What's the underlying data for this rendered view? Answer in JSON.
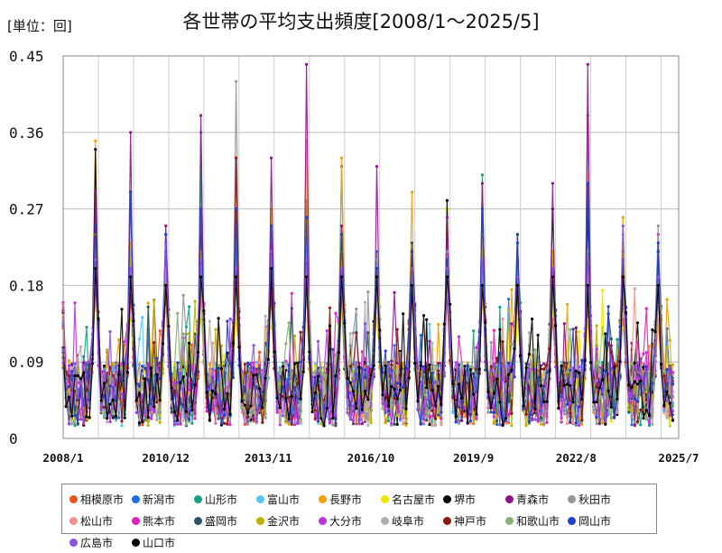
{
  "header": {
    "unit": "[単位：回]",
    "title": "各世帯の平均支出頻度[2008/1～2025/5]"
  },
  "chart_data": {
    "type": "line",
    "title": "各世帯の平均支出頻度[2008/1～2025/5]",
    "xlabel": "",
    "ylabel": "",
    "ylim": [
      0,
      0.45
    ],
    "yticks": [
      "0",
      "0.09",
      "0.18",
      "0.27",
      "0.36",
      "0.45"
    ],
    "xticks": [
      "2008/1",
      "2010/12",
      "2013/11",
      "2016/10",
      "2019/9",
      "2022/8",
      "2025/7"
    ],
    "grid": true,
    "legend_position": "bottom",
    "x_range": [
      "2008/1",
      "2025/5"
    ],
    "annual_peak_months": [
      "2008/12",
      "2009/12",
      "2010/12",
      "2011/12",
      "2012/12",
      "2013/12",
      "2014/12",
      "2015/12",
      "2016/12",
      "2017/12",
      "2018/12",
      "2019/12",
      "2020/12",
      "2021/12",
      "2022/12",
      "2023/12",
      "2024/12"
    ],
    "series": [
      {
        "name": "相模原市",
        "color": "#e8521c",
        "peaks": [
          0.2,
          0.17,
          0.19,
          0.16,
          0.14,
          0.16,
          0.18,
          0.17,
          0.18,
          0.17,
          0.18,
          0.17,
          0.16,
          0.14,
          0.15,
          0.14,
          0.14
        ]
      },
      {
        "name": "新潟市",
        "color": "#1f6fe0",
        "peaks": [
          0.26,
          0.29,
          0.23,
          0.36,
          0.24,
          0.23,
          0.25,
          0.21,
          0.22,
          0.22,
          0.19,
          0.24,
          0.24,
          0.2,
          0.19,
          0.18,
          0.18
        ]
      },
      {
        "name": "山形市",
        "color": "#14a085",
        "peaks": [
          0.23,
          0.22,
          0.22,
          0.32,
          0.24,
          0.2,
          0.28,
          0.32,
          0.2,
          0.22,
          0.24,
          0.31,
          0.21,
          0.21,
          0.38,
          0.2,
          0.22
        ]
      },
      {
        "name": "富山市",
        "color": "#55c5f0",
        "peaks": [
          0.22,
          0.21,
          0.2,
          0.22,
          0.27,
          0.2,
          0.22,
          0.21,
          0.18,
          0.2,
          0.24,
          0.26,
          0.19,
          0.19,
          0.28,
          0.2,
          0.22
        ]
      },
      {
        "name": "長野市",
        "color": "#f0a000",
        "peaks": [
          0.35,
          0.23,
          0.24,
          0.24,
          0.26,
          0.27,
          0.35,
          0.33,
          0.2,
          0.29,
          0.27,
          0.23,
          0.17,
          0.22,
          0.31,
          0.26,
          0.18
        ]
      },
      {
        "name": "名古屋市",
        "color": "#f2e600",
        "peaks": [
          0.16,
          0.14,
          0.15,
          0.14,
          0.15,
          0.13,
          0.14,
          0.16,
          0.14,
          0.17,
          0.27,
          0.16,
          0.14,
          0.15,
          0.14,
          0.13,
          0.14
        ]
      },
      {
        "name": "堺市",
        "color": "#000000",
        "peaks": [
          0.34,
          0.18,
          0.17,
          0.18,
          0.2,
          0.17,
          0.19,
          0.18,
          0.19,
          0.2,
          0.28,
          0.19,
          0.18,
          0.27,
          0.27,
          0.18,
          0.17
        ]
      },
      {
        "name": "青森市",
        "color": "#8b158a",
        "peaks": [
          0.29,
          0.36,
          0.25,
          0.38,
          0.33,
          0.33,
          0.44,
          0.25,
          0.32,
          0.22,
          0.26,
          0.3,
          0.24,
          0.3,
          0.44,
          0.22,
          0.24
        ]
      },
      {
        "name": "秋田市",
        "color": "#959595",
        "peaks": [
          0.2,
          0.22,
          0.2,
          0.24,
          0.42,
          0.23,
          0.26,
          0.22,
          0.21,
          0.22,
          0.22,
          0.24,
          0.2,
          0.2,
          0.22,
          0.24,
          0.25
        ]
      },
      {
        "name": "松山市",
        "color": "#f09090",
        "peaks": [
          0.17,
          0.16,
          0.18,
          0.17,
          0.18,
          0.2,
          0.17,
          0.18,
          0.17,
          0.18,
          0.16,
          0.17,
          0.16,
          0.17,
          0.16,
          0.17,
          0.16
        ]
      },
      {
        "name": "熊本市",
        "color": "#e020b8",
        "peaks": [
          0.22,
          0.2,
          0.19,
          0.21,
          0.22,
          0.23,
          0.24,
          0.21,
          0.18,
          0.2,
          0.19,
          0.22,
          0.18,
          0.19,
          0.21,
          0.19,
          0.2
        ]
      },
      {
        "name": "盛岡市",
        "color": "#2a5560",
        "peaks": [
          0.18,
          0.21,
          0.19,
          0.24,
          0.18,
          0.21,
          0.22,
          0.19,
          0.2,
          0.23,
          0.21,
          0.22,
          0.24,
          0.18,
          0.3,
          0.2,
          0.22
        ]
      },
      {
        "name": "金沢市",
        "color": "#c0b000",
        "peaks": [
          0.24,
          0.21,
          0.2,
          0.22,
          0.26,
          0.22,
          0.24,
          0.22,
          0.19,
          0.2,
          0.2,
          0.22,
          0.18,
          0.2,
          0.22,
          0.23,
          0.19
        ]
      },
      {
        "name": "大分市",
        "color": "#c030e0",
        "peaks": [
          0.21,
          0.19,
          0.18,
          0.2,
          0.2,
          0.22,
          0.21,
          0.2,
          0.18,
          0.19,
          0.2,
          0.19,
          0.18,
          0.19,
          0.2,
          0.18,
          0.19
        ]
      },
      {
        "name": "岐阜市",
        "color": "#b0b0b0",
        "peaks": [
          0.19,
          0.18,
          0.17,
          0.19,
          0.18,
          0.19,
          0.2,
          0.18,
          0.17,
          0.18,
          0.17,
          0.18,
          0.17,
          0.17,
          0.18,
          0.17,
          0.17
        ]
      },
      {
        "name": "神戸市",
        "color": "#8b1a10",
        "peaks": [
          0.18,
          0.17,
          0.18,
          0.19,
          0.33,
          0.18,
          0.19,
          0.18,
          0.19,
          0.18,
          0.17,
          0.18,
          0.17,
          0.18,
          0.17,
          0.17,
          0.18
        ]
      },
      {
        "name": "和歌山市",
        "color": "#88b070",
        "peaks": [
          0.19,
          0.18,
          0.19,
          0.2,
          0.19,
          0.21,
          0.2,
          0.19,
          0.18,
          0.19,
          0.18,
          0.19,
          0.18,
          0.18,
          0.19,
          0.18,
          0.19
        ]
      },
      {
        "name": "岡山市",
        "color": "#2040c8",
        "peaks": [
          0.25,
          0.29,
          0.24,
          0.27,
          0.27,
          0.25,
          0.26,
          0.24,
          0.2,
          0.22,
          0.21,
          0.27,
          0.23,
          0.2,
          0.3,
          0.21,
          0.23
        ]
      },
      {
        "name": "広島市",
        "color": "#9050e0",
        "peaks": [
          0.21,
          0.2,
          0.23,
          0.21,
          0.2,
          0.22,
          0.21,
          0.2,
          0.19,
          0.2,
          0.2,
          0.21,
          0.19,
          0.2,
          0.21,
          0.25,
          0.19
        ]
      },
      {
        "name": "山口市",
        "color": "#000000",
        "peaks": [
          0.2,
          0.19,
          0.18,
          0.19,
          0.19,
          0.2,
          0.19,
          0.19,
          0.19,
          0.18,
          0.19,
          0.18,
          0.18,
          0.19,
          0.18,
          0.19,
          0.18
        ]
      }
    ]
  }
}
